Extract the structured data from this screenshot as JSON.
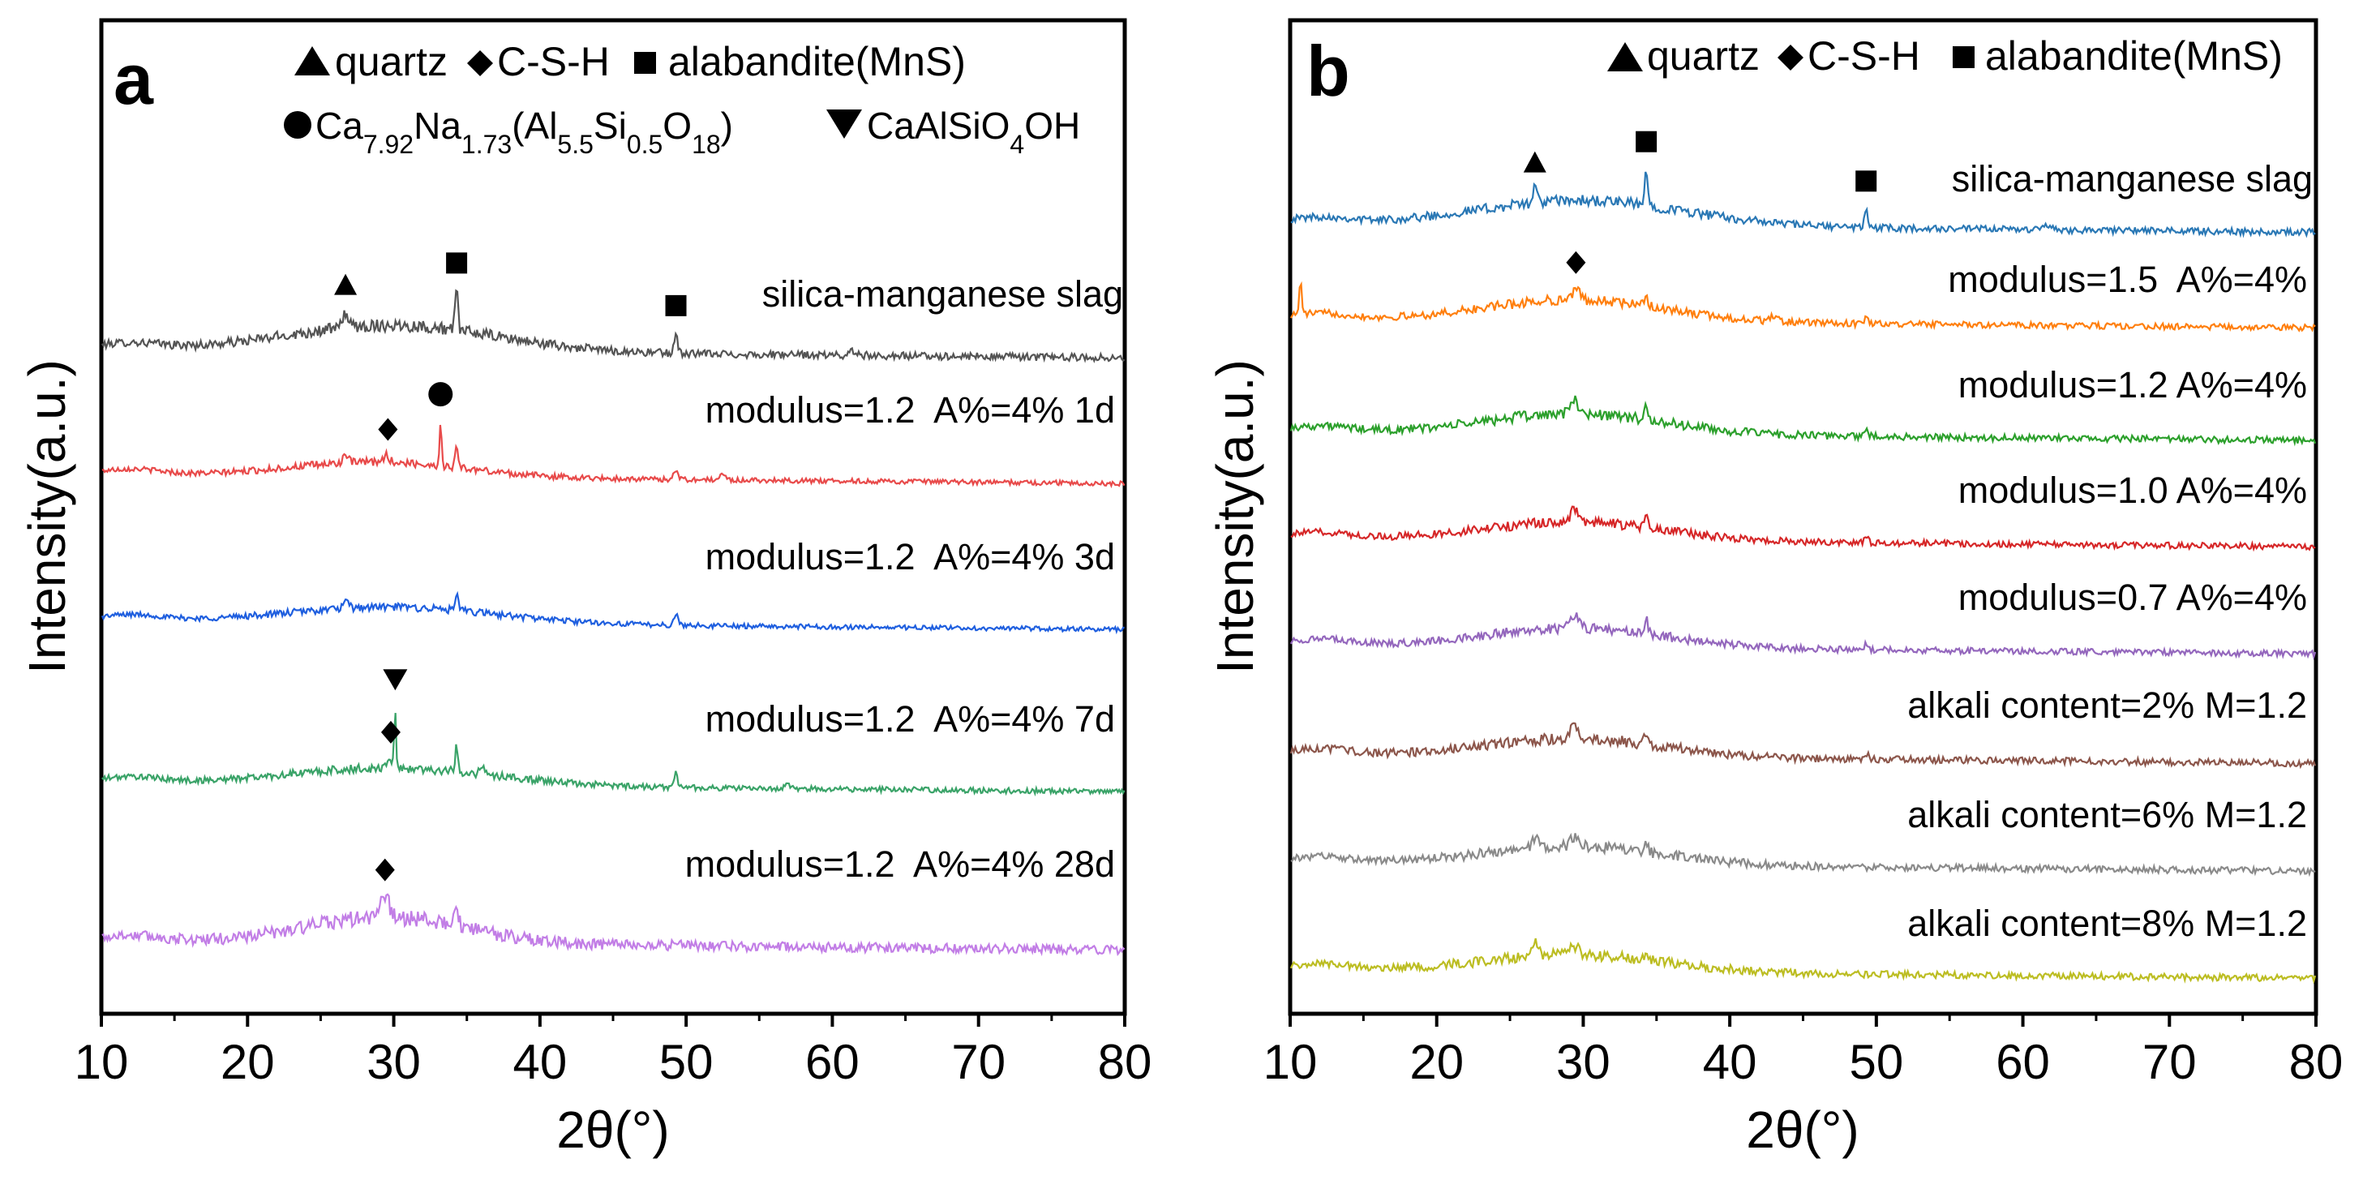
{
  "chart_data": [
    {
      "type": "line",
      "panel_label": "a",
      "xlabel": "2θ(°)",
      "ylabel": "Intensity(a.u.)",
      "xlim": [
        10,
        80
      ],
      "xticks": [
        10,
        20,
        30,
        40,
        50,
        60,
        70,
        80
      ],
      "legend": [
        {
          "marker": "triangle-up",
          "label": "quartz"
        },
        {
          "marker": "diamond",
          "label": "C-S-H"
        },
        {
          "marker": "square",
          "label": "alabandite(MnS)"
        },
        {
          "marker": "circle",
          "label": "Ca7.92Na1.73(Al5.5Si0.5O18)"
        },
        {
          "marker": "triangle-down",
          "label": "CaAlSiO4OH"
        }
      ],
      "series": [
        {
          "name": "silica-manganese slag",
          "color": "#545454",
          "peaks": [
            [
              26.7,
              1.4,
              0.18
            ],
            [
              34.3,
              3.5,
              0.1
            ],
            [
              49.3,
              1.6,
              0.12
            ],
            [
              61.5,
              0.35,
              0.3
            ]
          ],
          "hump": [
            30,
            7,
            2.3
          ],
          "noise": 0.55,
          "markers": [
            {
              "type": "triangle-up",
              "x": 26.7
            },
            {
              "type": "square",
              "x": 34.3
            },
            {
              "type": "square",
              "x": 49.3
            }
          ]
        },
        {
          "name": "modulus=1.2  A%=4% 1d",
          "color": "#e84a4a",
          "peaks": [
            [
              26.7,
              0.7,
              0.18
            ],
            [
              29.5,
              0.6,
              0.2
            ],
            [
              33.2,
              3.9,
              0.07
            ],
            [
              34.3,
              2.0,
              0.1
            ],
            [
              49.3,
              0.9,
              0.15
            ],
            [
              52.5,
              0.6,
              0.15
            ]
          ],
          "hump": [
            29,
            6,
            1.3
          ],
          "noise": 0.35,
          "markers": [
            {
              "type": "diamond",
              "x": 29.6
            },
            {
              "type": "circle",
              "x": 33.2
            }
          ]
        },
        {
          "name": "modulus=1.2  A%=4% 3d",
          "color": "#1f5fdf",
          "peaks": [
            [
              26.7,
              0.5,
              0.2
            ],
            [
              34.3,
              1.5,
              0.1
            ],
            [
              49.3,
              0.9,
              0.15
            ]
          ],
          "hump": [
            30,
            7,
            1.4
          ],
          "noise": 0.35,
          "markers": []
        },
        {
          "name": "modulus=1.2  A%=4% 7d",
          "color": "#3aa368",
          "peaks": [
            [
              29.7,
              0.9,
              0.2
            ],
            [
              30.1,
              5.0,
              0.06
            ],
            [
              34.3,
              2.2,
              0.1
            ],
            [
              36.0,
              0.8,
              0.15
            ],
            [
              49.3,
              1.3,
              0.12
            ],
            [
              57.0,
              0.35,
              0.2
            ]
          ],
          "hump": [
            30,
            7,
            1.5
          ],
          "noise": 0.4,
          "markers": [
            {
              "type": "triangle-down",
              "x": 30.1
            },
            {
              "type": "diamond",
              "x": 29.8
            }
          ]
        },
        {
          "name": "modulus=1.2  A%=4% 28d",
          "color": "#c27ee6",
          "peaks": [
            [
              29.4,
              1.8,
              0.3
            ],
            [
              34.3,
              1.4,
              0.15
            ],
            [
              49.3,
              0.5,
              0.2
            ]
          ],
          "hump": [
            29.5,
            5.5,
            2.3
          ],
          "noise": 0.7,
          "markers": [
            {
              "type": "diamond",
              "x": 29.4
            }
          ]
        }
      ]
    },
    {
      "type": "line",
      "panel_label": "b",
      "xlabel": "2θ(°)",
      "ylabel": "Intensity(a.u.)",
      "xlim": [
        10,
        80
      ],
      "xticks": [
        10,
        20,
        30,
        40,
        50,
        60,
        70,
        80
      ],
      "legend": [
        {
          "marker": "triangle-up",
          "label": "quartz"
        },
        {
          "marker": "diamond",
          "label": "C-S-H"
        },
        {
          "marker": "square",
          "label": "alabandite(MnS)"
        }
      ],
      "series": [
        {
          "name": "silica-manganese slag",
          "color": "#2a78b5",
          "peaks": [
            [
              26.7,
              1.2,
              0.18
            ],
            [
              34.3,
              3.2,
              0.1
            ],
            [
              49.3,
              1.5,
              0.12
            ],
            [
              61.5,
              0.4,
              0.3
            ]
          ],
          "hump": [
            30,
            7,
            2.2
          ],
          "noise": 0.5,
          "markers": [
            {
              "type": "triangle-up",
              "x": 26.7
            },
            {
              "type": "square",
              "x": 34.3
            },
            {
              "type": "square",
              "x": 49.3
            }
          ]
        },
        {
          "name": "modulus=1.5  A%=4%",
          "color": "#ff7f0e",
          "peaks": [
            [
              10.7,
              3.0,
              0.08
            ],
            [
              29.5,
              0.9,
              0.25
            ],
            [
              34.3,
              1.1,
              0.12
            ],
            [
              43.0,
              0.4,
              0.3
            ],
            [
              49.3,
              0.5,
              0.15
            ]
          ],
          "hump": [
            29.5,
            6,
            1.9
          ],
          "noise": 0.45,
          "markers": [
            {
              "type": "diamond",
              "x": 29.5
            }
          ]
        },
        {
          "name": "modulus=1.2 A%=4%",
          "color": "#2ca02c",
          "peaks": [
            [
              29.4,
              1.2,
              0.25
            ],
            [
              34.3,
              1.0,
              0.12
            ],
            [
              49.3,
              0.7,
              0.15
            ]
          ],
          "hump": [
            29.5,
            6,
            1.8
          ],
          "noise": 0.5,
          "markers": []
        },
        {
          "name": "modulus=1.0 A%=4%",
          "color": "#d62728",
          "peaks": [
            [
              29.4,
              1.2,
              0.25
            ],
            [
              34.3,
              1.0,
              0.12
            ],
            [
              49.3,
              0.5,
              0.15
            ]
          ],
          "hump": [
            29.5,
            6,
            1.6
          ],
          "noise": 0.45,
          "markers": []
        },
        {
          "name": "modulus=0.7 A%=4%",
          "color": "#9467bd",
          "peaks": [
            [
              29.4,
              1.1,
              0.25
            ],
            [
              34.3,
              1.3,
              0.12
            ],
            [
              49.3,
              0.5,
              0.15
            ]
          ],
          "hump": [
            29.5,
            6,
            1.7
          ],
          "noise": 0.45,
          "markers": []
        },
        {
          "name": "alkali content=2% M=1.2",
          "color": "#8c564b",
          "peaks": [
            [
              29.4,
              1.3,
              0.25
            ],
            [
              34.3,
              1.2,
              0.12
            ],
            [
              49.3,
              0.5,
              0.15
            ]
          ],
          "hump": [
            29.5,
            6,
            1.6
          ],
          "noise": 0.5,
          "markers": []
        },
        {
          "name": "alkali content=6% M=1.2",
          "color": "#8a8a8a",
          "peaks": [
            [
              26.7,
              1.0,
              0.2
            ],
            [
              29.4,
              0.9,
              0.25
            ],
            [
              34.3,
              0.8,
              0.12
            ]
          ],
          "hump": [
            29.5,
            6,
            1.6
          ],
          "noise": 0.5,
          "markers": []
        },
        {
          "name": "alkali content=8% M=1.2",
          "color": "#bcbd22",
          "peaks": [
            [
              26.7,
              1.2,
              0.2
            ],
            [
              29.4,
              0.8,
              0.25
            ],
            [
              34.3,
              0.7,
              0.12
            ]
          ],
          "hump": [
            29.5,
            6,
            1.5
          ],
          "noise": 0.5,
          "markers": []
        }
      ]
    }
  ]
}
